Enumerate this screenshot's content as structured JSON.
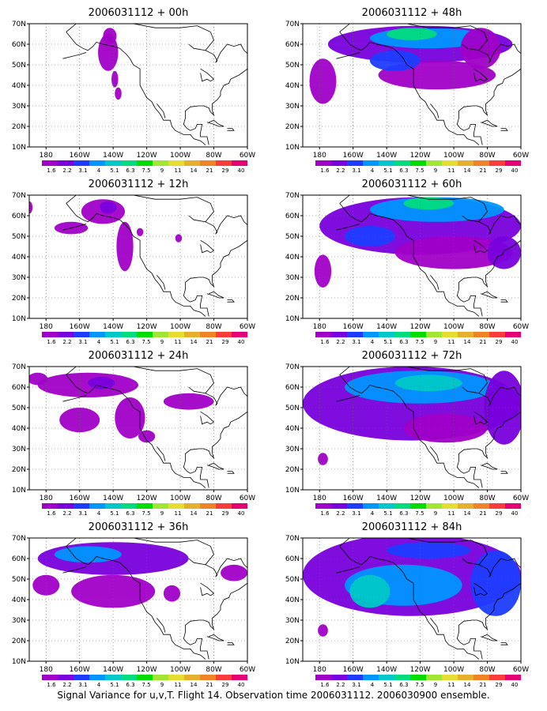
{
  "figure": {
    "caption": "Signal Variance for u,v,T. Flight 14. Observation time 2006031112. 2006030900 ensemble."
  },
  "chart_data": {
    "type": "heatmap",
    "map_axes": {
      "x_tick_labels": [
        "180",
        "160W",
        "140W",
        "120W",
        "100W",
        "80W",
        "60W"
      ],
      "y_tick_labels": [
        "10N",
        "20N",
        "30N",
        "40N",
        "50N",
        "60N",
        "70N"
      ],
      "lon_range": [
        -190,
        -60
      ],
      "lat_range": [
        10,
        70
      ],
      "grid": "dotted"
    },
    "colorbar": {
      "levels": [
        "1.6",
        "2.2",
        "3.1",
        "4",
        "5.1",
        "6.3",
        "7.5",
        "9",
        "11",
        "14",
        "21",
        "29",
        "40"
      ],
      "colors": [
        "#a000c8",
        "#7800dc",
        "#1e3cff",
        "#0096ff",
        "#00c8c8",
        "#00dc7e",
        "#00dc00",
        "#a0e632",
        "#e6dc32",
        "#e6af2d",
        "#f08228",
        "#fa3c3c",
        "#e60078"
      ]
    },
    "panels": [
      {
        "title": "2006031112 + 00h",
        "blobs": [
          {
            "lon": -143,
            "lat": 56,
            "rx": 6,
            "ry": 9,
            "level": 0
          },
          {
            "lon": -142,
            "lat": 64,
            "rx": 4,
            "ry": 4,
            "level": 0
          },
          {
            "lon": -137,
            "lat": 36,
            "rx": 2,
            "ry": 3,
            "level": 0
          },
          {
            "lon": -139,
            "lat": 43,
            "rx": 2,
            "ry": 4,
            "level": 0
          }
        ]
      },
      {
        "title": "2006031112 + 48h",
        "blobs": [
          {
            "lon": -120,
            "lat": 60,
            "rx": 55,
            "ry": 9,
            "level": 1
          },
          {
            "lon": -115,
            "lat": 63,
            "rx": 35,
            "ry": 5,
            "level": 3
          },
          {
            "lon": -125,
            "lat": 65,
            "rx": 15,
            "ry": 3,
            "level": 5
          },
          {
            "lon": -110,
            "lat": 45,
            "rx": 35,
            "ry": 7,
            "level": 0
          },
          {
            "lon": -178,
            "lat": 42,
            "rx": 8,
            "ry": 11,
            "level": 0
          },
          {
            "lon": -84,
            "lat": 58,
            "rx": 12,
            "ry": 10,
            "level": 0
          },
          {
            "lon": -135,
            "lat": 52,
            "rx": 15,
            "ry": 5,
            "level": 2
          }
        ]
      },
      {
        "title": "2006031112 + 12h",
        "blobs": [
          {
            "lon": -146,
            "lat": 62,
            "rx": 13,
            "ry": 6,
            "level": 0
          },
          {
            "lon": -143,
            "lat": 64,
            "rx": 5,
            "ry": 3,
            "level": 1
          },
          {
            "lon": -165,
            "lat": 54,
            "rx": 10,
            "ry": 3,
            "level": 0
          },
          {
            "lon": -133,
            "lat": 45,
            "rx": 5,
            "ry": 12,
            "level": 0
          },
          {
            "lon": -190,
            "lat": 64,
            "rx": 2,
            "ry": 3,
            "level": 0
          },
          {
            "lon": -124,
            "lat": 52,
            "rx": 2,
            "ry": 2,
            "level": 0
          },
          {
            "lon": -101,
            "lat": 49,
            "rx": 2,
            "ry": 2,
            "level": 0
          }
        ]
      },
      {
        "title": "2006031112 + 60h",
        "blobs": [
          {
            "lon": -120,
            "lat": 55,
            "rx": 60,
            "ry": 14,
            "level": 1
          },
          {
            "lon": -110,
            "lat": 63,
            "rx": 40,
            "ry": 6,
            "level": 3
          },
          {
            "lon": -115,
            "lat": 66,
            "rx": 15,
            "ry": 3,
            "level": 5
          },
          {
            "lon": -100,
            "lat": 42,
            "rx": 35,
            "ry": 8,
            "level": 0
          },
          {
            "lon": -178,
            "lat": 33,
            "rx": 5,
            "ry": 8,
            "level": 0
          },
          {
            "lon": -70,
            "lat": 42,
            "rx": 10,
            "ry": 8,
            "level": 1
          },
          {
            "lon": -150,
            "lat": 50,
            "rx": 15,
            "ry": 5,
            "level": 2
          }
        ]
      },
      {
        "title": "2006031112 + 24h",
        "blobs": [
          {
            "lon": -155,
            "lat": 61,
            "rx": 30,
            "ry": 6,
            "level": 0
          },
          {
            "lon": -147,
            "lat": 62,
            "rx": 8,
            "ry": 3,
            "level": 1
          },
          {
            "lon": -160,
            "lat": 44,
            "rx": 12,
            "ry": 6,
            "level": 0
          },
          {
            "lon": -130,
            "lat": 45,
            "rx": 9,
            "ry": 10,
            "level": 0
          },
          {
            "lon": -95,
            "lat": 53,
            "rx": 15,
            "ry": 4,
            "level": 0
          },
          {
            "lon": -185,
            "lat": 64,
            "rx": 6,
            "ry": 3,
            "level": 0
          },
          {
            "lon": -120,
            "lat": 36,
            "rx": 5,
            "ry": 3,
            "level": 0
          }
        ]
      },
      {
        "title": "2006031112 + 72h",
        "blobs": [
          {
            "lon": -125,
            "lat": 52,
            "rx": 65,
            "ry": 18,
            "level": 1
          },
          {
            "lon": -120,
            "lat": 60,
            "rx": 45,
            "ry": 8,
            "level": 3
          },
          {
            "lon": -115,
            "lat": 62,
            "rx": 20,
            "ry": 4,
            "level": 4
          },
          {
            "lon": -70,
            "lat": 50,
            "rx": 12,
            "ry": 18,
            "level": 1
          },
          {
            "lon": -178,
            "lat": 25,
            "rx": 3,
            "ry": 3,
            "level": 0
          },
          {
            "lon": -105,
            "lat": 40,
            "rx": 25,
            "ry": 7,
            "level": 0
          }
        ]
      },
      {
        "title": "2006031112 + 36h",
        "blobs": [
          {
            "lon": -140,
            "lat": 60,
            "rx": 45,
            "ry": 8,
            "level": 1
          },
          {
            "lon": -155,
            "lat": 62,
            "rx": 20,
            "ry": 4,
            "level": 3
          },
          {
            "lon": -140,
            "lat": 44,
            "rx": 25,
            "ry": 8,
            "level": 0
          },
          {
            "lon": -180,
            "lat": 47,
            "rx": 8,
            "ry": 5,
            "level": 0
          },
          {
            "lon": -68,
            "lat": 53,
            "rx": 8,
            "ry": 4,
            "level": 0
          },
          {
            "lon": -105,
            "lat": 43,
            "rx": 5,
            "ry": 4,
            "level": 0
          }
        ]
      },
      {
        "title": "2006031112 + 84h",
        "blobs": [
          {
            "lon": -125,
            "lat": 52,
            "rx": 65,
            "ry": 20,
            "level": 1
          },
          {
            "lon": -130,
            "lat": 47,
            "rx": 35,
            "ry": 10,
            "level": 3
          },
          {
            "lon": -150,
            "lat": 44,
            "rx": 12,
            "ry": 8,
            "level": 4
          },
          {
            "lon": -75,
            "lat": 48,
            "rx": 15,
            "ry": 16,
            "level": 2
          },
          {
            "lon": -178,
            "lat": 25,
            "rx": 3,
            "ry": 3,
            "level": 0
          },
          {
            "lon": -115,
            "lat": 64,
            "rx": 25,
            "ry": 4,
            "level": 2
          }
        ]
      }
    ]
  }
}
